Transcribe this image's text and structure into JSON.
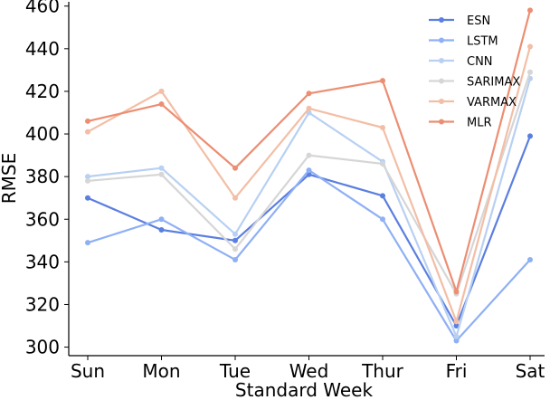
{
  "chart_data": {
    "type": "line",
    "xlabel": "Standard Week",
    "ylabel": "RMSE",
    "categories": [
      "Sun",
      "Mon",
      "Tue",
      "Wed",
      "Thur",
      "Fri",
      "Sat"
    ],
    "ylim": [
      296,
      462
    ],
    "yticks": [
      300,
      320,
      340,
      360,
      380,
      400,
      420,
      440,
      460
    ],
    "grid": false,
    "legend_position": "top-right",
    "series": [
      {
        "name": "ESN",
        "color": "#5b7fe0",
        "values": [
          370,
          355,
          350,
          381,
          371,
          310,
          399
        ]
      },
      {
        "name": "LSTM",
        "color": "#8fb0f5",
        "values": [
          349,
          360,
          341,
          383,
          360,
          303,
          341
        ]
      },
      {
        "name": "CNN",
        "color": "#b8d0f2",
        "values": [
          380,
          384,
          353,
          410,
          387,
          305,
          426
        ]
      },
      {
        "name": "SARIMAX",
        "color": "#d6d6d6",
        "values": [
          378,
          381,
          346,
          390,
          386,
          325,
          429
        ]
      },
      {
        "name": "VARMAX",
        "color": "#f3bea5",
        "values": [
          401,
          420,
          370,
          412,
          403,
          312,
          441
        ]
      },
      {
        "name": "MLR",
        "color": "#ec8e72",
        "values": [
          406,
          414,
          384,
          419,
          425,
          326,
          458
        ]
      }
    ]
  }
}
